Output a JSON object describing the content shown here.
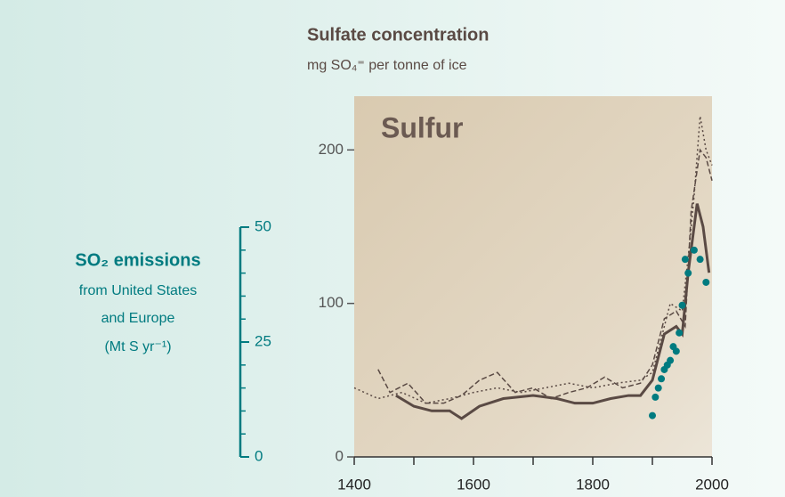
{
  "chart_data": {
    "type": "line",
    "title": "Sulfate concentration",
    "subtitle": "mg SO₄⁼ per tonne of ice",
    "annotation": "Sulfur",
    "y2_label": [
      "SO₂ emissions",
      "from United States",
      "and Europe",
      "(Mt S yr⁻¹)"
    ],
    "xlim": [
      1400,
      2000
    ],
    "xticks": [
      1400,
      1600,
      1800,
      2000
    ],
    "xminorticks": [
      1500,
      1700,
      1900
    ],
    "ylim": [
      0,
      235
    ],
    "yticks": [
      0,
      100,
      200
    ],
    "y2lim": [
      0,
      78.5
    ],
    "y2ticks": [
      0,
      25,
      50
    ],
    "series": [
      {
        "color": "#5a4a44",
        "dash": "none",
        "width": 3,
        "x": [
          1470,
          1500,
          1530,
          1560,
          1580,
          1610,
          1650,
          1700,
          1740,
          1770,
          1800,
          1830,
          1860,
          1880,
          1900,
          1920,
          1940,
          1950,
          1960,
          1975,
          1985,
          1995
        ],
        "values": [
          40,
          33,
          30,
          30,
          25,
          33,
          38,
          40,
          38,
          35,
          35,
          38,
          40,
          40,
          50,
          80,
          85,
          80,
          120,
          165,
          150,
          120
        ]
      },
      {
        "color": "#5a4a44",
        "dash": "2 3",
        "width": 1.5,
        "x": [
          1400,
          1440,
          1480,
          1520,
          1560,
          1600,
          1640,
          1680,
          1720,
          1760,
          1800,
          1840,
          1880,
          1900,
          1930,
          1950,
          1960,
          1970,
          1980,
          1990,
          2000
        ],
        "values": [
          45,
          38,
          42,
          35,
          38,
          42,
          45,
          42,
          45,
          48,
          45,
          48,
          50,
          55,
          100,
          95,
          130,
          170,
          222,
          200,
          190
        ]
      },
      {
        "color": "#5a4a44",
        "dash": "6 3",
        "width": 1.5,
        "x": [
          1440,
          1460,
          1490,
          1520,
          1550,
          1580,
          1610,
          1640,
          1670,
          1700,
          1730,
          1760,
          1790,
          1820,
          1850,
          1880,
          1900,
          1920,
          1940,
          1955,
          1965,
          1980,
          1990,
          2000
        ],
        "values": [
          57,
          42,
          48,
          35,
          35,
          40,
          50,
          55,
          42,
          45,
          38,
          42,
          45,
          52,
          45,
          48,
          60,
          90,
          95,
          85,
          160,
          200,
          195,
          180
        ]
      },
      {
        "type": "scatter",
        "axis": "y2",
        "color": "#007b80",
        "x": [
          1900,
          1905,
          1910,
          1915,
          1920,
          1925,
          1930,
          1935,
          1940,
          1945,
          1950,
          1955,
          1960,
          1970,
          1980,
          1990
        ],
        "values": [
          9,
          13,
          15,
          17,
          19,
          20,
          21,
          24,
          23,
          27,
          33,
          43,
          40,
          45,
          43,
          38
        ]
      }
    ]
  }
}
